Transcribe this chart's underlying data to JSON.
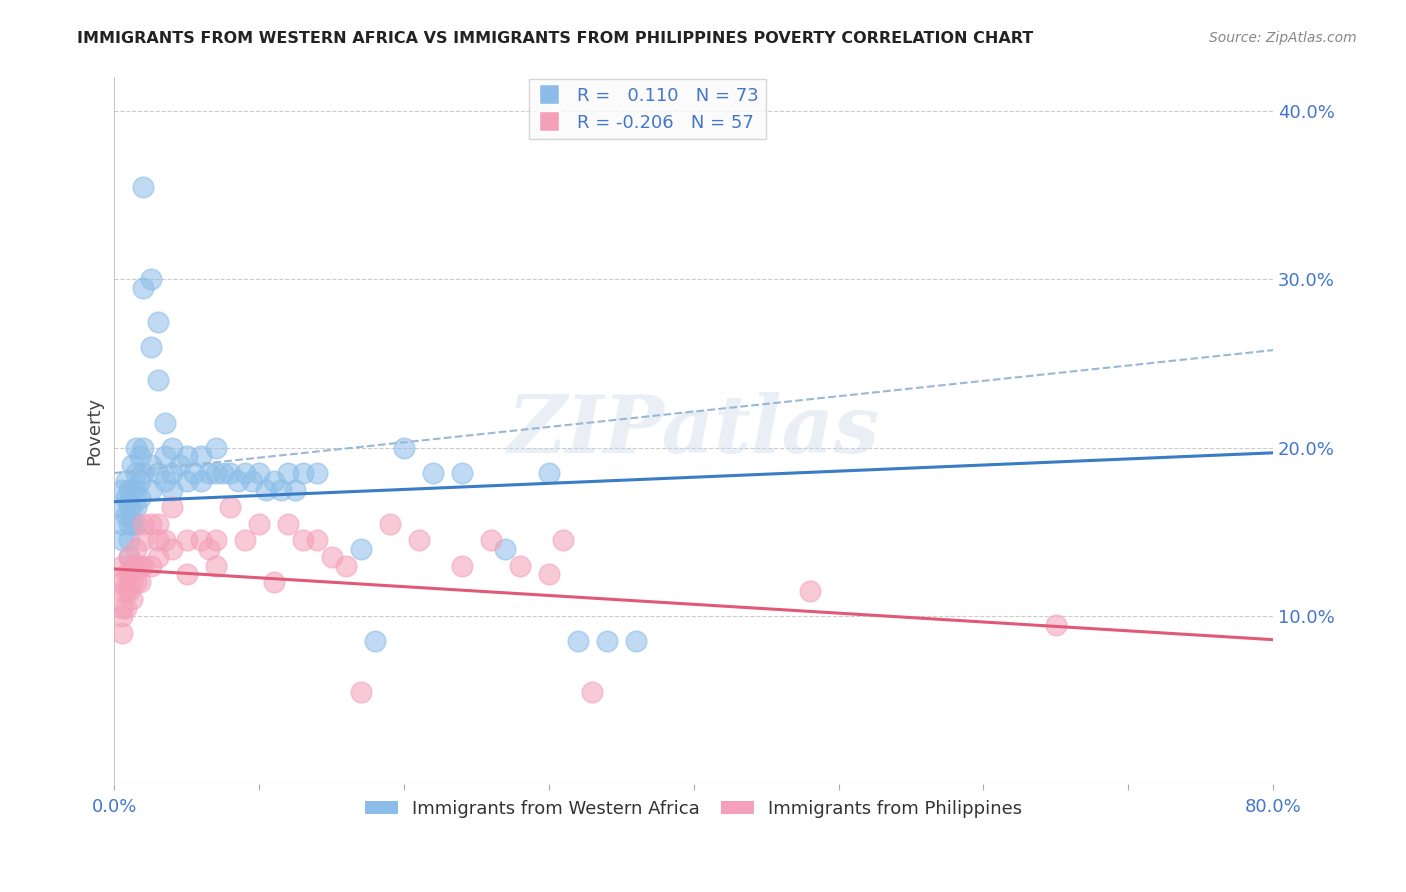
{
  "title": "IMMIGRANTS FROM WESTERN AFRICA VS IMMIGRANTS FROM PHILIPPINES POVERTY CORRELATION CHART",
  "source": "Source: ZipAtlas.com",
  "ylabel": "Poverty",
  "right_yticks": [
    "10.0%",
    "20.0%",
    "30.0%",
    "40.0%"
  ],
  "right_ytick_vals": [
    0.1,
    0.2,
    0.3,
    0.4
  ],
  "watermark": "ZIPatlas",
  "series1_label": "Immigrants from Western Africa",
  "series2_label": "Immigrants from Philippines",
  "series1_R": "0.110",
  "series2_R": "-0.206",
  "series1_N": "73",
  "series2_N": "57",
  "series1_color": "#8BBDE8",
  "series2_color": "#F4A0B8",
  "trend1_color": "#3A7CC5",
  "trend2_color": "#E05A78",
  "dashed_color": "#99B8D8",
  "xlim": [
    0.0,
    0.8
  ],
  "ylim": [
    0.0,
    0.42
  ],
  "blue_scatter_x": [
    0.005,
    0.005,
    0.005,
    0.005,
    0.008,
    0.008,
    0.008,
    0.01,
    0.01,
    0.01,
    0.01,
    0.01,
    0.012,
    0.012,
    0.012,
    0.012,
    0.015,
    0.015,
    0.015,
    0.015,
    0.015,
    0.018,
    0.018,
    0.018,
    0.02,
    0.02,
    0.02,
    0.02,
    0.025,
    0.025,
    0.025,
    0.025,
    0.03,
    0.03,
    0.03,
    0.035,
    0.035,
    0.035,
    0.04,
    0.04,
    0.04,
    0.045,
    0.05,
    0.05,
    0.055,
    0.06,
    0.06,
    0.065,
    0.07,
    0.07,
    0.075,
    0.08,
    0.085,
    0.09,
    0.095,
    0.1,
    0.105,
    0.11,
    0.115,
    0.12,
    0.125,
    0.13,
    0.14,
    0.17,
    0.18,
    0.2,
    0.22,
    0.24,
    0.27,
    0.3,
    0.32,
    0.34,
    0.36
  ],
  "blue_scatter_y": [
    0.175,
    0.165,
    0.155,
    0.145,
    0.18,
    0.17,
    0.16,
    0.175,
    0.165,
    0.155,
    0.145,
    0.135,
    0.19,
    0.175,
    0.165,
    0.155,
    0.2,
    0.185,
    0.175,
    0.165,
    0.155,
    0.195,
    0.18,
    0.17,
    0.355,
    0.295,
    0.2,
    0.185,
    0.3,
    0.26,
    0.19,
    0.175,
    0.275,
    0.24,
    0.185,
    0.215,
    0.195,
    0.18,
    0.2,
    0.185,
    0.175,
    0.19,
    0.195,
    0.18,
    0.185,
    0.195,
    0.18,
    0.185,
    0.2,
    0.185,
    0.185,
    0.185,
    0.18,
    0.185,
    0.18,
    0.185,
    0.175,
    0.18,
    0.175,
    0.185,
    0.175,
    0.185,
    0.185,
    0.14,
    0.085,
    0.2,
    0.185,
    0.185,
    0.14,
    0.185,
    0.085,
    0.085,
    0.085
  ],
  "pink_scatter_x": [
    0.005,
    0.005,
    0.005,
    0.005,
    0.005,
    0.005,
    0.008,
    0.008,
    0.008,
    0.01,
    0.01,
    0.01,
    0.012,
    0.012,
    0.012,
    0.015,
    0.015,
    0.015,
    0.018,
    0.018,
    0.02,
    0.02,
    0.02,
    0.025,
    0.025,
    0.03,
    0.03,
    0.03,
    0.035,
    0.04,
    0.04,
    0.05,
    0.05,
    0.06,
    0.065,
    0.07,
    0.07,
    0.08,
    0.09,
    0.1,
    0.11,
    0.12,
    0.13,
    0.14,
    0.15,
    0.16,
    0.17,
    0.19,
    0.21,
    0.24,
    0.26,
    0.28,
    0.3,
    0.31,
    0.33,
    0.48,
    0.65
  ],
  "pink_scatter_y": [
    0.13,
    0.12,
    0.115,
    0.105,
    0.1,
    0.09,
    0.125,
    0.115,
    0.105,
    0.135,
    0.125,
    0.115,
    0.13,
    0.12,
    0.11,
    0.14,
    0.13,
    0.12,
    0.13,
    0.12,
    0.155,
    0.145,
    0.13,
    0.155,
    0.13,
    0.155,
    0.145,
    0.135,
    0.145,
    0.165,
    0.14,
    0.145,
    0.125,
    0.145,
    0.14,
    0.145,
    0.13,
    0.165,
    0.145,
    0.155,
    0.12,
    0.155,
    0.145,
    0.145,
    0.135,
    0.13,
    0.055,
    0.155,
    0.145,
    0.13,
    0.145,
    0.13,
    0.125,
    0.145,
    0.055,
    0.115,
    0.095
  ],
  "blue_trend_y_start": 0.168,
  "blue_trend_y_end": 0.197,
  "pink_trend_y_start": 0.128,
  "pink_trend_y_end": 0.086,
  "dashed_trend_y_start": 0.185,
  "dashed_trend_y_end": 0.258,
  "background_color": "#FFFFFF",
  "grid_color": "#CCCCCC",
  "title_color": "#222222",
  "axis_label_color": "#4477CC"
}
